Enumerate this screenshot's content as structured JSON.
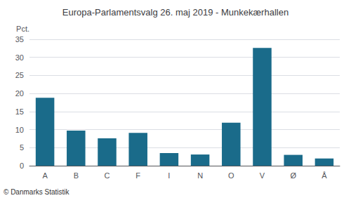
{
  "chart_data": {
    "type": "bar",
    "title": "Europa-Parlamentsvalg 26. maj 2019 - Munkekærhallen",
    "categories": [
      "A",
      "B",
      "C",
      "F",
      "I",
      "N",
      "O",
      "V",
      "Ø",
      "Å"
    ],
    "values": [
      18.8,
      9.7,
      7.6,
      9.1,
      3.5,
      3.1,
      11.9,
      32.6,
      3.0,
      2.0
    ],
    "color": "#1a6b8a",
    "ylabel": "Pct.",
    "ylim": [
      0,
      35
    ],
    "yticks": [
      0,
      5,
      10,
      15,
      20,
      25,
      30,
      35
    ],
    "grid": true,
    "annotation": "© Danmarks Statistik"
  }
}
